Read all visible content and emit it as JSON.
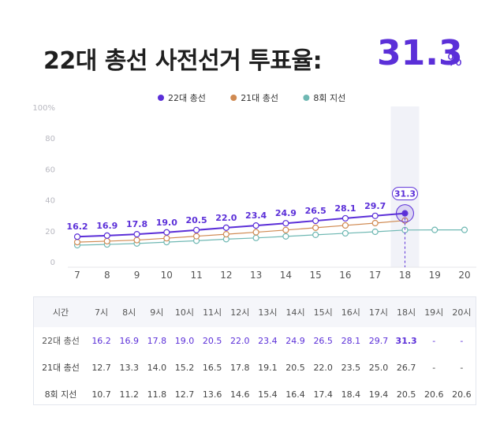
{
  "headline": {
    "label": "22대 총선 사전선거 투표율:",
    "value": "31.3",
    "unit": "%"
  },
  "colors": {
    "s22": "#5b2fd8",
    "s21": "#d08a52",
    "s8": "#6fb8b3",
    "highlight_band": "#f1f2f8"
  },
  "chart_data": {
    "type": "line",
    "x": [
      "7",
      "8",
      "9",
      "10",
      "11",
      "12",
      "13",
      "14",
      "15",
      "16",
      "17",
      "18",
      "19",
      "20"
    ],
    "ylim": [
      0,
      100
    ],
    "yticks": [
      "0",
      "20",
      "40",
      "60",
      "80",
      "100%"
    ],
    "ytick_values": [
      0,
      20,
      40,
      60,
      80,
      100
    ],
    "highlight_x": "18",
    "legend_position": "top-center",
    "grid": false,
    "series": [
      {
        "name": "22대 총선",
        "key": "s22",
        "values": [
          16.2,
          16.9,
          17.8,
          19.0,
          20.5,
          22.0,
          23.4,
          24.9,
          26.5,
          28.1,
          29.7,
          31.3,
          null,
          null
        ],
        "labels": [
          "16.2",
          "16.9",
          "17.8",
          "19.0",
          "20.5",
          "22.0",
          "23.4",
          "24.9",
          "26.5",
          "28.1",
          "29.7",
          "31.3",
          "",
          ""
        ]
      },
      {
        "name": "21대 총선",
        "key": "s21",
        "values": [
          12.7,
          13.3,
          14.0,
          15.2,
          16.5,
          17.8,
          19.1,
          20.5,
          22.0,
          23.5,
          25.0,
          26.7,
          null,
          null
        ]
      },
      {
        "name": "8회 지선",
        "key": "s8",
        "values": [
          10.7,
          11.2,
          11.8,
          12.7,
          13.6,
          14.6,
          15.4,
          16.4,
          17.4,
          18.4,
          19.4,
          20.5,
          20.6,
          20.6
        ]
      }
    ]
  },
  "table": {
    "corner": "시간",
    "hours": [
      "7시",
      "8시",
      "9시",
      "10시",
      "11시",
      "12시",
      "13시",
      "14시",
      "15시",
      "16시",
      "17시",
      "18시",
      "19시",
      "20시"
    ],
    "rows": [
      {
        "key": "s22",
        "label": "22대 총선",
        "cells": [
          "16.2",
          "16.9",
          "17.8",
          "19.0",
          "20.5",
          "22.0",
          "23.4",
          "24.9",
          "26.5",
          "28.1",
          "29.7",
          "31.3",
          "-",
          "-"
        ]
      },
      {
        "key": "s21",
        "label": "21대 총선",
        "cells": [
          "12.7",
          "13.3",
          "14.0",
          "15.2",
          "16.5",
          "17.8",
          "19.1",
          "20.5",
          "22.0",
          "23.5",
          "25.0",
          "26.7",
          "-",
          "-"
        ]
      },
      {
        "key": "s8",
        "label": "8회 지선",
        "cells": [
          "10.7",
          "11.2",
          "11.8",
          "12.7",
          "13.6",
          "14.6",
          "15.4",
          "16.4",
          "17.4",
          "18.4",
          "19.4",
          "20.5",
          "20.6",
          "20.6"
        ]
      }
    ]
  }
}
